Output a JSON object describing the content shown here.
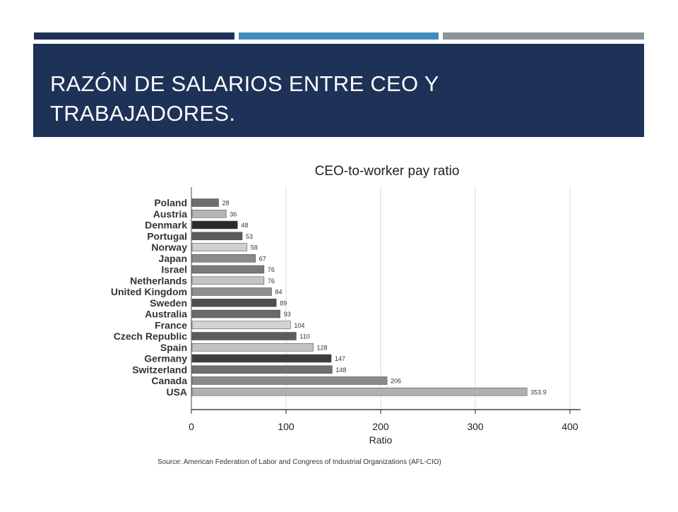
{
  "slide": {
    "title_line1": "RAZÓN DE SALARIOS ENTRE CEO Y",
    "title_line2": "TRABAJADORES.",
    "accent_colors": [
      "#1e3257",
      "#3e8dbf",
      "#8c9399"
    ],
    "header_bg": "#1e3257"
  },
  "chart_data": {
    "type": "bar",
    "orientation": "horizontal",
    "title": "CEO-to-worker pay ratio",
    "xlabel": "Ratio",
    "ylabel": "",
    "xlim": [
      0,
      400
    ],
    "xticks": [
      "0",
      "100",
      "200",
      "300",
      "400"
    ],
    "grid": true,
    "categories": [
      "Poland",
      "Austria",
      "Denmark",
      "Portugal",
      "Norway",
      "Japan",
      "Israel",
      "Netherlands",
      "United Kingdom",
      "Sweden",
      "Australia",
      "France",
      "Czech Republic",
      "Spain",
      "Germany",
      "Switzerland",
      "Canada",
      "USA"
    ],
    "values": [
      28,
      36,
      48,
      53,
      58,
      67,
      76,
      76,
      84,
      89,
      93,
      104,
      110,
      128,
      147,
      148,
      206,
      353.9
    ],
    "value_labels": [
      "28",
      "36",
      "48",
      "53",
      "58",
      "67",
      "76",
      "76",
      "84",
      "89",
      "93",
      "104",
      "110",
      "128",
      "147",
      "148",
      "206",
      "353.9"
    ],
    "bar_colors": [
      "#6e6e6e",
      "#b5b5b5",
      "#2a2a2a",
      "#5a5a5a",
      "#cfcfcf",
      "#8a8a8a",
      "#7a7a7a",
      "#c4c4c4",
      "#8f8f8f",
      "#4e4e4e",
      "#6a6a6a",
      "#d3d3d3",
      "#5c5c5c",
      "#c2c2c2",
      "#3c3c3c",
      "#707070",
      "#8a8a8a",
      "#b0b0b0"
    ],
    "source": "Source: American Federation of Labor and Congress of Industrial Organizations (AFL-CIO)"
  }
}
